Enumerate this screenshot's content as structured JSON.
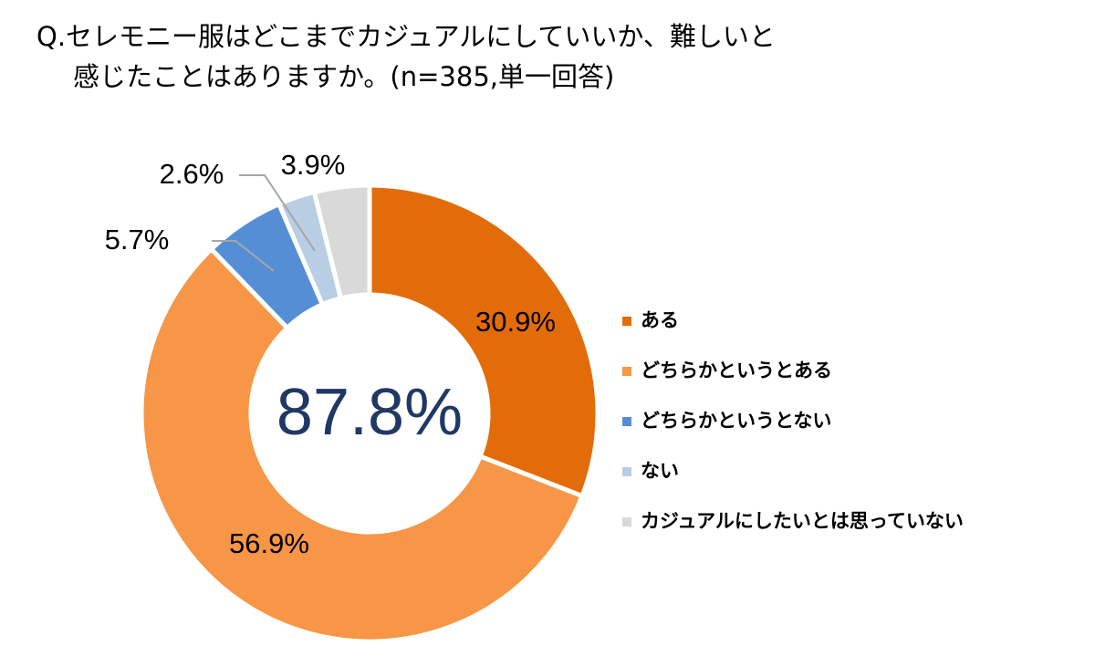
{
  "chart_data": {
    "type": "donut",
    "title": [
      "Q.セレモニー服はどこまでカジュアルにしていいか、難しいと",
      "感じたことはありますか。(n=385,単一回答)"
    ],
    "center_label": "87.8%",
    "categories": [
      "ある",
      "どちらかというとある",
      "どちらかというとない",
      "ない",
      "カジュアルにしたいとは思っていない"
    ],
    "values": [
      30.9,
      56.9,
      5.7,
      2.6,
      3.9
    ],
    "value_labels": [
      "30.9%",
      "56.9%",
      "5.7%",
      "2.6%",
      "3.9%"
    ],
    "colors": [
      "#e36c0a",
      "#f79646",
      "#558ed5",
      "#b9cde5",
      "#d9d9d9"
    ],
    "legend": "right"
  }
}
